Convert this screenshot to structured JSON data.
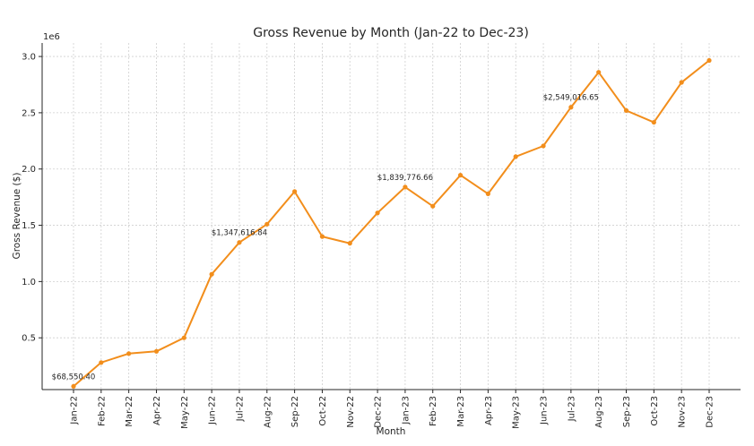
{
  "chart_data": {
    "type": "line",
    "title": "Gross Revenue by Month (Jan-22 to Dec-23)",
    "xlabel": "Month",
    "ylabel": "Gross Revenue ($)",
    "y_offset_label": "1e6",
    "ylim": [
      0.04,
      3.12
    ],
    "yticks": [
      0.5,
      1.0,
      1.5,
      2.0,
      2.5,
      3.0
    ],
    "ytick_labels": [
      "0.5",
      "1.0",
      "1.5",
      "2.0",
      "2.5",
      "3.0"
    ],
    "grid": true,
    "color": "#f28e1c",
    "categories": [
      "Jan-22",
      "Feb-22",
      "Mar-22",
      "Apr-22",
      "May-22",
      "Jun-22",
      "Jul-22",
      "Aug-22",
      "Sep-22",
      "Oct-22",
      "Nov-22",
      "Dec-22",
      "Jan-23",
      "Feb-23",
      "Mar-23",
      "Apr-23",
      "May-23",
      "Jun-23",
      "Jul-23",
      "Aug-23",
      "Sep-23",
      "Oct-23",
      "Nov-23",
      "Dec-23"
    ],
    "values": [
      0.0686,
      0.28,
      0.36,
      0.38,
      0.5,
      1.065,
      1.3476,
      1.51,
      1.8,
      1.4,
      1.34,
      1.61,
      1.8398,
      1.67,
      1.945,
      1.78,
      2.11,
      2.205,
      2.549,
      2.86,
      2.52,
      2.415,
      2.77,
      2.965
    ],
    "annotations": [
      {
        "index": 0,
        "text": "$68,550.40"
      },
      {
        "index": 6,
        "text": "$1,347,616.84"
      },
      {
        "index": 12,
        "text": "$1,839,776.66"
      },
      {
        "index": 18,
        "text": "$2,549,016.65"
      }
    ]
  }
}
